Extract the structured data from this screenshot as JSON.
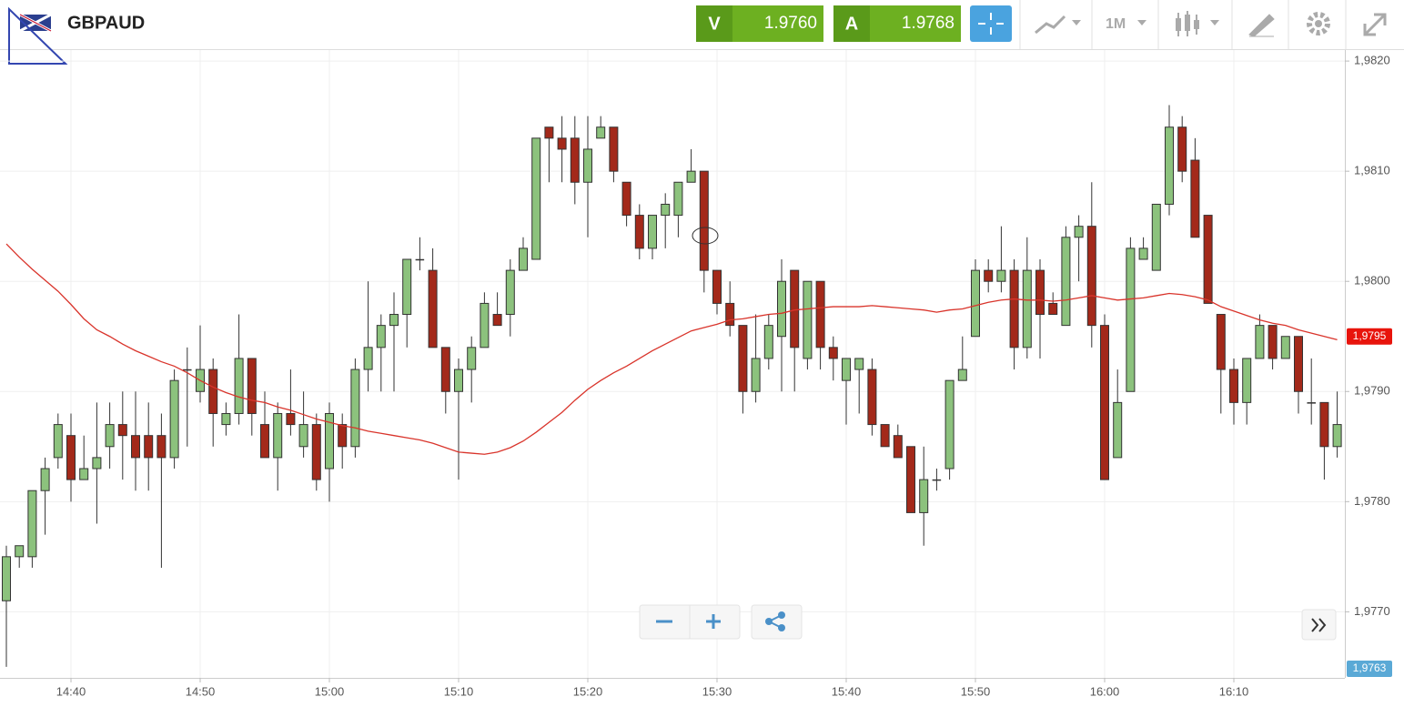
{
  "toolbar": {
    "symbol": "GBPAUD",
    "sell_label": "V",
    "sell_price": "1.9760",
    "buy_label": "A",
    "buy_price": "1.9768",
    "timeframe": "1M"
  },
  "chart_data": {
    "type": "candlestick",
    "x": [
      "14:35",
      "14:36",
      "14:37",
      "14:38",
      "14:39",
      "14:40",
      "14:41",
      "14:42",
      "14:43",
      "14:44",
      "14:45",
      "14:46",
      "14:47",
      "14:48",
      "14:49",
      "14:50",
      "14:51",
      "14:52",
      "14:53",
      "14:54",
      "14:55",
      "14:56",
      "14:57",
      "14:58",
      "14:59",
      "15:00",
      "15:01",
      "15:02",
      "15:03",
      "15:04",
      "15:05",
      "15:06",
      "15:07",
      "15:08",
      "15:09",
      "15:10",
      "15:11",
      "15:12",
      "15:13",
      "15:14",
      "15:15",
      "15:16",
      "15:17",
      "15:18",
      "15:19",
      "15:20",
      "15:21",
      "15:22",
      "15:23",
      "15:24",
      "15:25",
      "15:26",
      "15:27",
      "15:28",
      "15:29",
      "15:30",
      "15:31",
      "15:32",
      "15:33",
      "15:34",
      "15:35",
      "15:36",
      "15:37",
      "15:38",
      "15:39",
      "15:40",
      "15:41",
      "15:42",
      "15:43",
      "15:44",
      "15:45",
      "15:46",
      "15:47",
      "15:48",
      "15:49",
      "15:50",
      "15:51",
      "15:52",
      "15:53",
      "15:54",
      "15:55",
      "15:56",
      "15:57",
      "15:58",
      "15:59",
      "16:00",
      "16:01",
      "16:02",
      "16:03",
      "16:04",
      "16:05",
      "16:06",
      "16:07",
      "16:08",
      "16:09",
      "16:10",
      "16:11",
      "16:12",
      "16:13",
      "16:14",
      "16:15",
      "16:16",
      "16:17",
      "16:18"
    ],
    "candles": {
      "open": [
        1.9771,
        1.9775,
        1.9775,
        1.9781,
        1.9784,
        1.9786,
        1.9782,
        1.9783,
        1.9785,
        1.9787,
        1.9786,
        1.9786,
        1.9786,
        1.9784,
        1.9792,
        1.979,
        1.9792,
        1.9787,
        1.9788,
        1.9793,
        1.9787,
        1.9784,
        1.9788,
        1.9785,
        1.9787,
        1.9783,
        1.9787,
        1.9785,
        1.9792,
        1.9794,
        1.9796,
        1.9797,
        1.9802,
        1.9801,
        1.9794,
        1.979,
        1.9792,
        1.9794,
        1.9797,
        1.9797,
        1.9801,
        1.9802,
        1.9814,
        1.9813,
        1.9813,
        1.9809,
        1.9813,
        1.9814,
        1.9809,
        1.9806,
        1.9803,
        1.9806,
        1.9806,
        1.9809,
        1.981,
        1.9801,
        1.9798,
        1.9796,
        1.979,
        1.9793,
        1.9795,
        1.9801,
        1.9793,
        1.98,
        1.9794,
        1.9791,
        1.9792,
        1.9792,
        1.9787,
        1.9786,
        1.9785,
        1.9779,
        1.9782,
        1.9783,
        1.9791,
        1.9795,
        1.9801,
        1.98,
        1.9801,
        1.9794,
        1.9801,
        1.9798,
        1.9796,
        1.9804,
        1.9805,
        1.9796,
        1.9784,
        1.979,
        1.9802,
        1.9801,
        1.9807,
        1.9814,
        1.9811,
        1.9806,
        1.9797,
        1.9792,
        1.9789,
        1.9793,
        1.9796,
        1.9793,
        1.9795,
        1.9789,
        1.9789,
        1.9785
      ],
      "high": [
        1.9776,
        1.9776,
        1.9781,
        1.9784,
        1.9788,
        1.9788,
        1.9786,
        1.9789,
        1.9789,
        1.979,
        1.979,
        1.9789,
        1.9788,
        1.9792,
        1.9794,
        1.9796,
        1.9793,
        1.9789,
        1.9797,
        1.9793,
        1.979,
        1.9789,
        1.9792,
        1.979,
        1.9788,
        1.9789,
        1.9788,
        1.9793,
        1.98,
        1.9797,
        1.9799,
        1.9802,
        1.9804,
        1.9803,
        1.9794,
        1.9793,
        1.9795,
        1.9799,
        1.9799,
        1.9802,
        1.9804,
        1.9813,
        1.9814,
        1.9815,
        1.9815,
        1.9815,
        1.9815,
        1.9814,
        1.9809,
        1.9807,
        1.9806,
        1.9808,
        1.9809,
        1.9812,
        1.981,
        1.9801,
        1.98,
        1.9796,
        1.9797,
        1.9797,
        1.9802,
        1.9801,
        1.98,
        1.98,
        1.9795,
        1.9793,
        1.9793,
        1.9793,
        1.9787,
        1.9787,
        1.9785,
        1.9785,
        1.9783,
        1.9791,
        1.9795,
        1.9802,
        1.9802,
        1.9805,
        1.9802,
        1.9804,
        1.9802,
        1.9799,
        1.9805,
        1.9806,
        1.9809,
        1.9797,
        1.9792,
        1.9804,
        1.9804,
        1.9807,
        1.9816,
        1.9815,
        1.9813,
        1.9806,
        1.9797,
        1.9793,
        1.9793,
        1.9797,
        1.9796,
        1.9795,
        1.9795,
        1.9793,
        1.9789,
        1.979
      ],
      "low": [
        1.9765,
        1.9774,
        1.9774,
        1.9777,
        1.9783,
        1.978,
        1.9782,
        1.9778,
        1.9783,
        1.9782,
        1.9781,
        1.9781,
        1.9774,
        1.9783,
        1.9785,
        1.9789,
        1.9785,
        1.9786,
        1.9787,
        1.9786,
        1.9784,
        1.9781,
        1.9786,
        1.9784,
        1.9781,
        1.978,
        1.9783,
        1.9784,
        1.979,
        1.979,
        1.979,
        1.9794,
        1.9801,
        1.9794,
        1.9788,
        1.9782,
        1.9789,
        1.9794,
        1.9796,
        1.9795,
        1.9801,
        1.9802,
        1.9809,
        1.9809,
        1.9807,
        1.9804,
        1.9813,
        1.9809,
        1.9805,
        1.9802,
        1.9802,
        1.9803,
        1.9804,
        1.9809,
        1.9799,
        1.9797,
        1.9795,
        1.9788,
        1.9789,
        1.9792,
        1.979,
        1.979,
        1.9792,
        1.9792,
        1.9791,
        1.9787,
        1.9788,
        1.9786,
        1.9785,
        1.9784,
        1.9779,
        1.9776,
        1.9781,
        1.9782,
        1.9791,
        1.9795,
        1.9799,
        1.9799,
        1.9792,
        1.9793,
        1.9793,
        1.9797,
        1.9796,
        1.98,
        1.9794,
        1.9782,
        1.9784,
        1.979,
        1.9802,
        1.9801,
        1.9806,
        1.9809,
        1.9804,
        1.9798,
        1.9788,
        1.9787,
        1.9787,
        1.9793,
        1.9792,
        1.9793,
        1.9788,
        1.9787,
        1.9782,
        1.9784
      ],
      "close": [
        1.9775,
        1.9776,
        1.9781,
        1.9783,
        1.9787,
        1.9782,
        1.9783,
        1.9784,
        1.9787,
        1.9786,
        1.9784,
        1.9784,
        1.9784,
        1.9791,
        1.9792,
        1.9792,
        1.9788,
        1.9788,
        1.9793,
        1.9788,
        1.9784,
        1.9788,
        1.9787,
        1.9787,
        1.9782,
        1.9788,
        1.9785,
        1.9792,
        1.9794,
        1.9796,
        1.9797,
        1.9802,
        1.9802,
        1.9794,
        1.979,
        1.9792,
        1.9794,
        1.9798,
        1.9796,
        1.9801,
        1.9803,
        1.9813,
        1.9813,
        1.9812,
        1.9809,
        1.9812,
        1.9814,
        1.981,
        1.9806,
        1.9803,
        1.9806,
        1.9807,
        1.9809,
        1.981,
        1.9801,
        1.9798,
        1.9796,
        1.979,
        1.9793,
        1.9796,
        1.98,
        1.9794,
        1.98,
        1.9794,
        1.9793,
        1.9793,
        1.9793,
        1.9787,
        1.9785,
        1.9784,
        1.9779,
        1.9782,
        1.9782,
        1.9791,
        1.9792,
        1.9801,
        1.98,
        1.9801,
        1.9794,
        1.9801,
        1.9797,
        1.9797,
        1.9804,
        1.9805,
        1.9796,
        1.9782,
        1.9789,
        1.9803,
        1.9803,
        1.9807,
        1.9814,
        1.981,
        1.9804,
        1.9798,
        1.9792,
        1.9789,
        1.9793,
        1.9796,
        1.9793,
        1.9795,
        1.979,
        1.9789,
        1.9785,
        1.9787
      ]
    },
    "up_color": "#8cc27d",
    "down_color": "#a3291a",
    "moving_average": {
      "color": "#d9342b",
      "values": [
        1.98034,
        1.98022,
        1.98011,
        1.98001,
        1.97991,
        1.97979,
        1.97966,
        1.97956,
        1.9795,
        1.97943,
        1.97937,
        1.97932,
        1.97927,
        1.97923,
        1.97917,
        1.9791,
        1.97904,
        1.97899,
        1.97895,
        1.97892,
        1.9789,
        1.97886,
        1.97883,
        1.97879,
        1.97875,
        1.97872,
        1.97869,
        1.97867,
        1.97864,
        1.97862,
        1.9786,
        1.97858,
        1.97856,
        1.97853,
        1.97849,
        1.97845,
        1.97844,
        1.97843,
        1.97845,
        1.97849,
        1.97855,
        1.97863,
        1.97872,
        1.97881,
        1.97892,
        1.97902,
        1.9791,
        1.97917,
        1.97923,
        1.9793,
        1.97937,
        1.97943,
        1.97949,
        1.97955,
        1.97958,
        1.97961,
        1.97965,
        1.97966,
        1.97968,
        1.9797,
        1.97971,
        1.97974,
        1.97975,
        1.97976,
        1.97977,
        1.97977,
        1.97977,
        1.97978,
        1.97977,
        1.97976,
        1.97975,
        1.97974,
        1.97972,
        1.97974,
        1.97975,
        1.97978,
        1.97981,
        1.97983,
        1.97984,
        1.97983,
        1.97983,
        1.97982,
        1.97983,
        1.97985,
        1.97987,
        1.97985,
        1.97983,
        1.97984,
        1.97985,
        1.97987,
        1.97989,
        1.97988,
        1.97986,
        1.97983,
        1.97977,
        1.97973,
        1.97969,
        1.97965,
        1.97962,
        1.9796,
        1.97956,
        1.97953,
        1.9795,
        1.97947
      ]
    },
    "ylim": [
      1.9764,
      1.9821
    ],
    "yticks": [
      {
        "value": 1.977,
        "label": "1,9770"
      },
      {
        "value": 1.978,
        "label": "1,9780"
      },
      {
        "value": 1.979,
        "label": "1,9790"
      },
      {
        "value": 1.98,
        "label": "1,9800"
      },
      {
        "value": 1.981,
        "label": "1,9810"
      },
      {
        "value": 1.982,
        "label": "1,9820"
      }
    ],
    "xticks": [
      "14:40",
      "14:50",
      "15:00",
      "15:10",
      "15:20",
      "15:30",
      "15:40",
      "15:50",
      "16:00",
      "16:10"
    ],
    "grid": true,
    "last_price": {
      "value": 1.9795,
      "label": "1,9795",
      "color": "#e8140c"
    },
    "bid_price": {
      "value": 1.9763,
      "label": "1,9763",
      "color": "#5aa9d6"
    }
  }
}
